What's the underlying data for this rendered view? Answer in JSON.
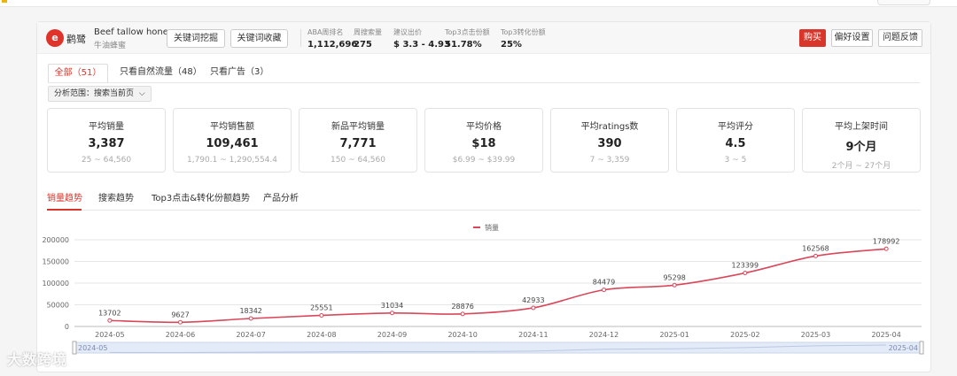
{
  "header": {
    "logo_glyph": "e",
    "logo_text": "鹳鹭",
    "keyword_en": "Beef tallow honey",
    "keyword_cn": "牛油蜂蜜",
    "btn_mining": "关键词挖掘",
    "btn_collect": "关键词收藏",
    "stats": [
      {
        "label": "ABA周排名",
        "value": "1,112,696"
      },
      {
        "label": "周搜索量",
        "value": "275"
      },
      {
        "label": "建议出价",
        "value": "$ 3.3 - 4.93"
      },
      {
        "label": "Top3点击份额",
        "value": "51.78%"
      },
      {
        "label": "Top3转化份额",
        "value": "25%"
      }
    ],
    "buy": "购买",
    "prefs": "偏好设置",
    "feedback": "问题反馈"
  },
  "filter_tabs": [
    {
      "label": "全部（51）"
    },
    {
      "label": "只看自然流量（48）"
    },
    {
      "label": "只看广告（3）"
    }
  ],
  "scope_label": "分析范围：搜索当前页",
  "scope_caret": "⌵",
  "cards": [
    {
      "title": "平均销量",
      "value": "3,387",
      "range": "25 ~ 64,560"
    },
    {
      "title": "平均销售额",
      "value": "109,461",
      "range": "1,790.1 ~ 1,290,554.4"
    },
    {
      "title": "新品平均销量",
      "value": "7,771",
      "range": "150 ~ 64,560"
    },
    {
      "title": "平均价格",
      "value": "$18",
      "range": "$6.99 ~ $39.99"
    },
    {
      "title": "平均ratings数",
      "value": "390",
      "range": "7 ~ 3,359"
    },
    {
      "title": "平均评分",
      "value": "4.5",
      "range": "3 ~ 5"
    },
    {
      "title": "平均上架时间",
      "value": "9个月",
      "range": "2个月 ~ 27个月"
    }
  ],
  "chart_tabs": [
    {
      "label": "销量趋势"
    },
    {
      "label": "搜索趋势"
    },
    {
      "label": "Top3点击&转化份额趋势"
    },
    {
      "label": "产品分析"
    }
  ],
  "chart_data": {
    "type": "line",
    "categories": [
      "2024-05",
      "2024-06",
      "2024-07",
      "2024-08",
      "2024-09",
      "2024-10",
      "2024-11",
      "2024-12",
      "2025-01",
      "2025-02",
      "2025-03",
      "2025-04"
    ],
    "series": [
      {
        "name": "销量",
        "values": [
          13702,
          9627,
          18342,
          25551,
          31034,
          28876,
          42933,
          84479,
          95298,
          123399,
          162568,
          178992
        ]
      }
    ],
    "y_ticks": [
      0,
      50000,
      100000,
      150000,
      200000
    ],
    "ylim": [
      0,
      200000
    ],
    "legend": "top-center",
    "grid": true,
    "color": "#d9475a",
    "slider_start": "2024-05",
    "slider_end": "2025-04"
  },
  "watermark": "大数跨境"
}
